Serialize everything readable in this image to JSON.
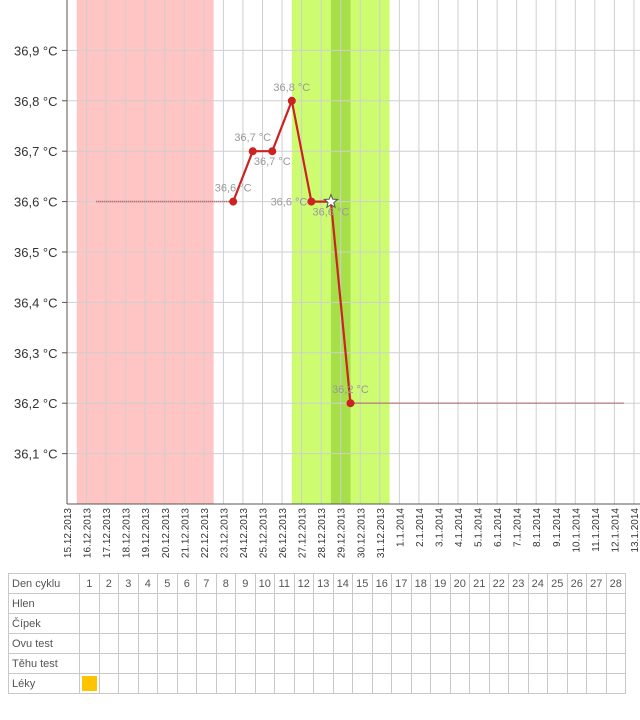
{
  "chart_data": {
    "type": "line",
    "title": "",
    "ylim": [
      36.0,
      37.0
    ],
    "y_ticks": [
      "36,1 °C",
      "36,2 °C",
      "36,3 °C",
      "36,4 °C",
      "36,5 °C",
      "36,6 °C",
      "36,7 °C",
      "36,8 °C",
      "36,9 °C"
    ],
    "y_tick_values": [
      36.1,
      36.2,
      36.3,
      36.4,
      36.5,
      36.6,
      36.7,
      36.8,
      36.9
    ],
    "categories": [
      "15.12.2013",
      "16.12.2013",
      "17.12.2013",
      "18.12.2013",
      "19.12.2013",
      "20.12.2013",
      "21.12.2013",
      "22.12.2013",
      "23.12.2013",
      "24.12.2013",
      "25.12.2013",
      "26.12.2013",
      "27.12.2013",
      "28.12.2013",
      "29.12.2013",
      "30.12.2013",
      "31.12.2013",
      "1.1.2014",
      "2.1.2014",
      "3.1.2014",
      "4.1.2014",
      "5.1.2014",
      "6.1.2014",
      "7.1.2014",
      "8.1.2014",
      "9.1.2014",
      "10.1.2014",
      "11.1.2014",
      "12.1.2014",
      "13.1.2014"
    ],
    "series": [
      {
        "values": [
          null,
          null,
          null,
          null,
          null,
          null,
          null,
          null,
          36.6,
          36.7,
          36.7,
          36.8,
          36.6,
          36.6,
          36.2,
          null,
          null,
          null,
          null,
          null,
          null,
          null,
          null,
          null,
          null,
          null,
          null,
          null,
          null,
          null
        ],
        "labels": [
          null,
          null,
          null,
          null,
          null,
          null,
          null,
          null,
          "36,6 °C",
          "36,7 °C",
          "36,7 °C",
          "36,8 °C",
          "36,6 °C",
          "36,6 °C",
          "36,2 °C",
          null,
          null,
          null,
          null,
          null,
          null,
          null,
          null,
          null,
          null,
          null,
          null,
          null,
          null,
          null
        ],
        "color": "#cc2222",
        "star_index": 13
      }
    ],
    "reference_lines": [
      {
        "value": 36.6,
        "from": "16.12.2013",
        "to": "23.12.2013",
        "color": "#a05050"
      },
      {
        "value": 36.2,
        "from": "29.12.2013",
        "to": "12.1.2014",
        "color": "#a05050"
      }
    ],
    "shaded_ranges": [
      {
        "from": "15.12.2013",
        "to": "22.12.2013",
        "color": "#ffc4c4"
      },
      {
        "from": "26.12.2013",
        "to": "31.12.2013",
        "color": "#cdfc70"
      },
      {
        "from": "28.12.2013",
        "to": "29.12.2013",
        "color": "#a6df48"
      }
    ],
    "grid": true
  },
  "cycle_table": {
    "rows": [
      {
        "label": "Den cyklu",
        "days": [
          "1",
          "2",
          "3",
          "4",
          "5",
          "6",
          "7",
          "8",
          "9",
          "10",
          "11",
          "12",
          "13",
          "14",
          "15",
          "16",
          "17",
          "18",
          "19",
          "20",
          "21",
          "22",
          "23",
          "24",
          "25",
          "26",
          "27",
          "28"
        ]
      },
      {
        "label": "Hlen",
        "days": []
      },
      {
        "label": "Čípek",
        "days": []
      },
      {
        "label": "Ovu test",
        "days": []
      },
      {
        "label": "Těhu test",
        "days": []
      },
      {
        "label": "Léky",
        "days": [],
        "markers": [
          1
        ],
        "marker_color": "#ffc400"
      }
    ]
  }
}
